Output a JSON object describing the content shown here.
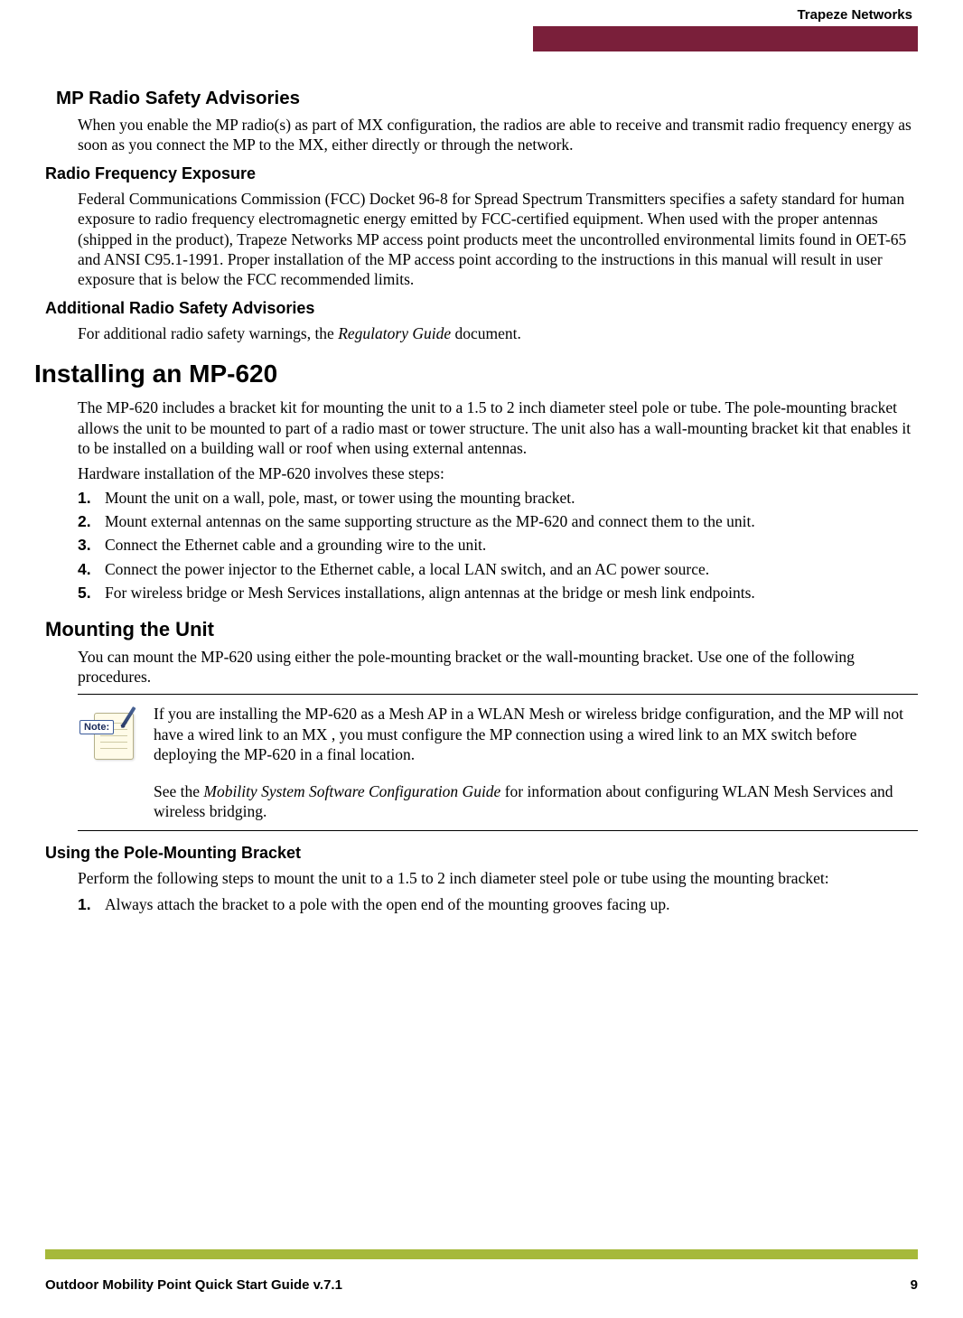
{
  "header": {
    "brand": "Trapeze Networks"
  },
  "sections": {
    "mp_radio": {
      "heading": "MP Radio Safety Advisories",
      "body": "When you enable the MP radio(s) as part of MX configuration, the radios are able to receive and transmit radio frequency energy as soon as you connect the MP to the MX, either directly or through the network."
    },
    "rf_exposure": {
      "heading": "Radio Frequency Exposure",
      "body": "Federal Communications Commission (FCC) Docket 96-8 for Spread Spectrum Transmitters specifies a safety standard for human exposure to radio frequency electromagnetic energy emitted by FCC-certified equipment. When used with the proper antennas (shipped in the product), Trapeze Networks MP access point products meet the uncontrolled environmental limits found in OET-65 and ANSI C95.1-1991. Proper installation of the MP access point according to the instructions in this manual will result in user exposure that is below the FCC recommended limits."
    },
    "additional": {
      "heading": "Additional Radio Safety Advisories",
      "body_pre": "For additional radio safety warnings, the ",
      "body_em": "Regulatory Guide",
      "body_post": " document."
    },
    "installing": {
      "heading": "Installing an MP-620",
      "body": "The MP-620 includes a bracket kit for mounting the unit to a 1.5 to 2 inch diameter steel pole or tube. The pole-mounting bracket allows the unit to be mounted to part of a radio mast or tower structure. The unit also has a wall-mounting bracket kit that enables it to be installed on a building wall or roof when using external antennas.",
      "body2": "Hardware installation of the MP-620 involves these steps:",
      "steps": [
        "Mount the unit on a wall, pole, mast, or tower using the mounting bracket.",
        "Mount external antennas on the same supporting structure as the MP-620 and connect them to the unit.",
        "Connect the Ethernet cable and a grounding wire to the unit.",
        "Connect the power injector to the Ethernet cable, a local LAN switch, and an AC power source.",
        "For wireless bridge or Mesh Services installations, align antennas at the bridge or mesh link endpoints."
      ]
    },
    "mounting": {
      "heading": "Mounting the Unit",
      "body": "You can mount the MP-620 using either the pole-mounting bracket or the wall-mounting bracket. Use one of the following procedures."
    },
    "note": {
      "label": "Note:",
      "p1": "If you are installing the MP-620 as a Mesh AP in a WLAN Mesh or wireless bridge configuration, and the MP will not have a wired link to an MX , you must configure the MP connection using a wired link to an MX switch before deploying the MP-620 in a final location.",
      "p2_pre": "See the ",
      "p2_em": "Mobility System Software Configuration Guide",
      "p2_post": " for information about configuring WLAN Mesh Services and wireless bridging."
    },
    "pole_bracket": {
      "heading": "Using the Pole-Mounting Bracket",
      "body": "Perform the following steps to mount the unit to a 1.5 to 2 inch diameter steel pole or tube using the mounting bracket:",
      "steps": [
        "Always attach the bracket to a pole with the open end of the mounting grooves facing up."
      ]
    }
  },
  "footer": {
    "title": "Outdoor Mobility Point Quick Start Guide v.7.1",
    "page_number": "9"
  },
  "colors": {
    "header_bar": "#7a1f3a",
    "footer_bar": "#a6b93a",
    "text": "#000000",
    "background": "#ffffff"
  }
}
